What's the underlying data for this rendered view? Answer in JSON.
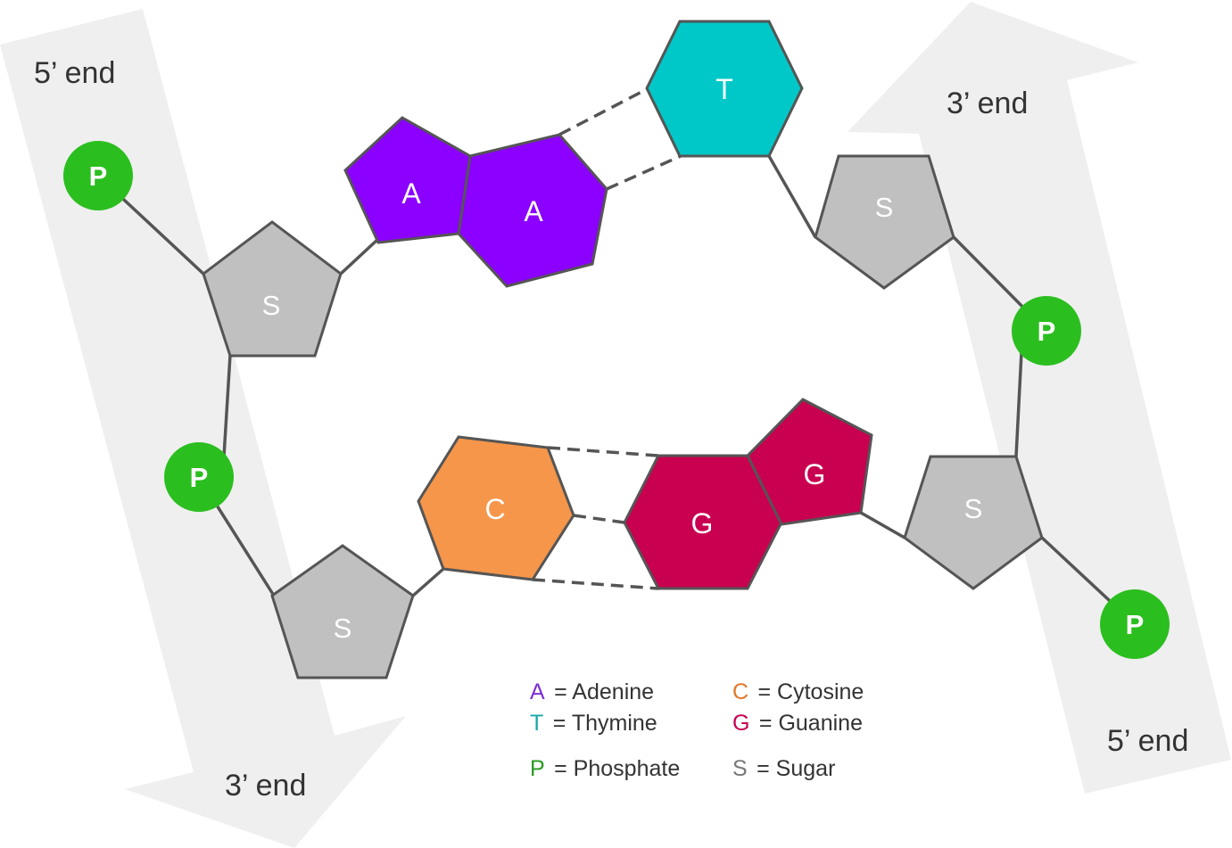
{
  "strands": {
    "left": {
      "top_end": "5’ end",
      "bottom_end": "3’ end"
    },
    "right": {
      "top_end": "3’ end",
      "bottom_end": "5’ end"
    }
  },
  "nodes": {
    "phosphate": "P",
    "sugar": "S",
    "adenine": "A",
    "thymine": "T",
    "cytosine": "C",
    "guanine": "G"
  },
  "legend": {
    "adenine": {
      "key": "A",
      "text": "= Adenine"
    },
    "thymine": {
      "key": "T",
      "text": "= Thymine"
    },
    "phosphate": {
      "key": "P",
      "text": "= Phosphate"
    },
    "cytosine": {
      "key": "C",
      "text": "= Cytosine"
    },
    "guanine": {
      "key": "G",
      "text": "= Guanine"
    },
    "sugar": {
      "key": "S",
      "text": "= Sugar"
    }
  },
  "colors": {
    "adenine": "#8b00ff",
    "thymine": "#00c8c8",
    "cytosine": "#f5964b",
    "guanine": "#c8004f",
    "sugar": "#c0c0c0",
    "phosphate": "#2bbe1f",
    "arrow": "#efefef",
    "legend_adenine": "#7b2fd6",
    "legend_thymine": "#19a8a8",
    "legend_phosphate": "#2a9a23",
    "legend_cytosine": "#e0782a",
    "legend_guanine": "#c8004f",
    "legend_sugar": "#777777"
  }
}
